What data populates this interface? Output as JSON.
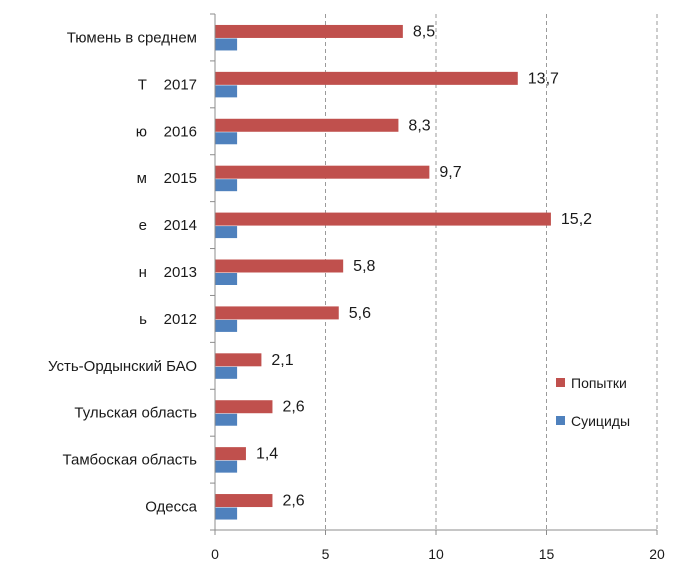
{
  "chart_data": {
    "type": "bar",
    "orientation": "horizontal",
    "categories": [
      "Тюмень в среднем",
      "Т    2017",
      "ю    2016",
      "м    2015",
      "е    2014",
      "н    2013",
      "ь    2012",
      "Усть-Ордынский БАО",
      "Тульская область",
      "Тамбоская область",
      "Одесса"
    ],
    "series": [
      {
        "name": "Попытки",
        "color": "#c0504d",
        "values": [
          8.5,
          13.7,
          8.3,
          9.7,
          15.2,
          5.8,
          5.6,
          2.1,
          2.6,
          1.4,
          2.6
        ],
        "labels": [
          "8,5",
          "13,7",
          "8,3",
          "9,7",
          "15,2",
          "5,8",
          "5,6",
          "2,1",
          "2,6",
          "1,4",
          "2,6"
        ]
      },
      {
        "name": "Суициды",
        "color": "#4f81bd",
        "values": [
          1,
          1,
          1,
          1,
          1,
          1,
          1,
          1,
          1,
          1,
          1
        ]
      }
    ],
    "xlim": [
      0,
      20
    ],
    "xticks": [
      0,
      5,
      10,
      15,
      20
    ],
    "xtick_labels": [
      "0",
      "5",
      "10",
      "15",
      "20"
    ],
    "grid": "vertical-dashed",
    "legend_position": "right",
    "title": "",
    "xlabel": "",
    "ylabel": ""
  }
}
